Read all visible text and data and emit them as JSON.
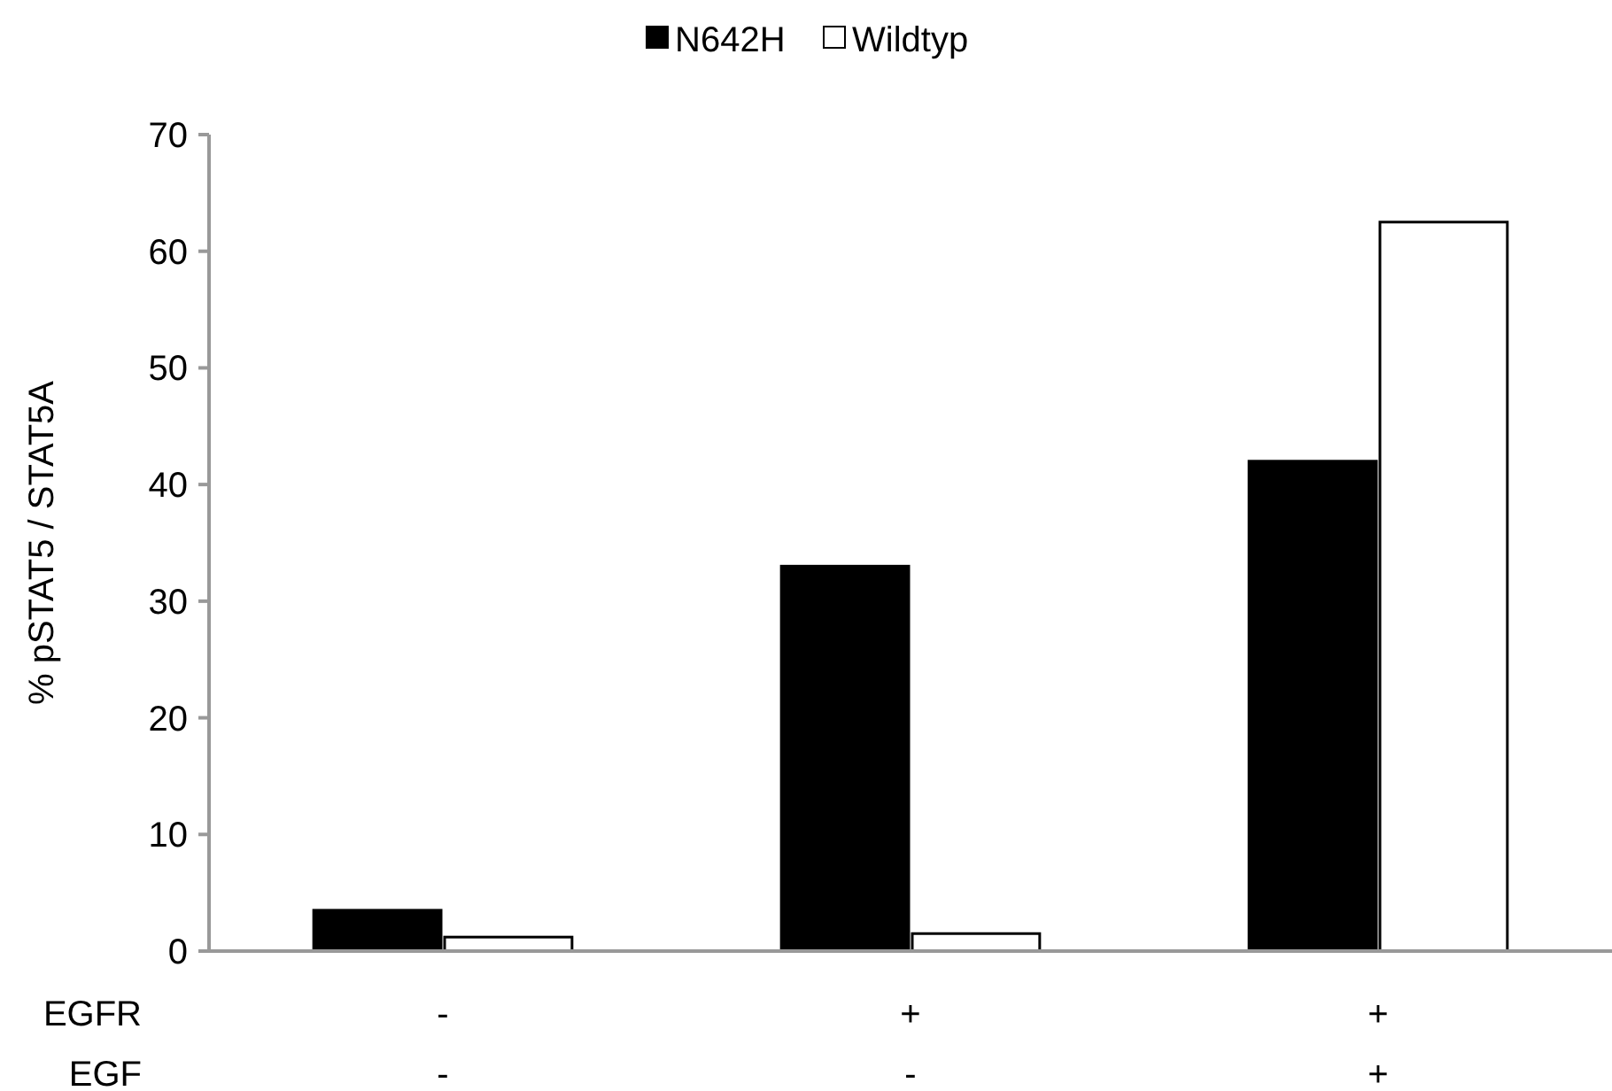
{
  "chart_data": {
    "type": "bar",
    "ylabel": "% pSTAT5 / STAT5A",
    "categories": [
      "-\n-",
      "+\n-",
      "+\n+"
    ],
    "annotations": [
      "EGFR",
      "EGF"
    ],
    "series": [
      {
        "name": "N642H",
        "color": "#000000",
        "values": [
          3.5,
          33,
          42
        ]
      },
      {
        "name": "Wildtyp",
        "color": "#ffffff",
        "values": [
          1.2,
          1.5,
          62.5
        ]
      }
    ],
    "ylim": [
      0,
      70
    ],
    "yticks": [
      0,
      10,
      20,
      30,
      40,
      50,
      60,
      70
    ],
    "grid": false,
    "legend": "top"
  }
}
